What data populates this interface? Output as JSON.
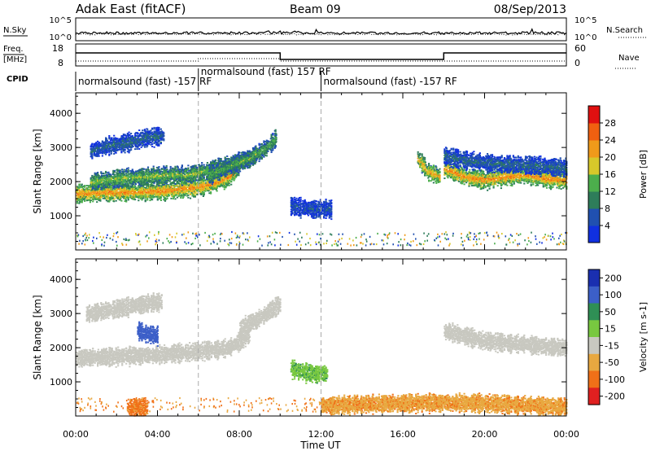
{
  "header": {
    "station": "Adak East (fitACF)",
    "beam": "Beam 09",
    "date": "08/Sep/2013"
  },
  "strips": {
    "nsky_label": "N.Sky",
    "nsearch_label": "N.Search",
    "noise_ticks": [
      "10^5",
      "10^0"
    ],
    "freq_label_line1": "Freq.",
    "freq_label_line2": "[MHz]",
    "freq_ticks": [
      "18",
      "8"
    ],
    "nave_label": "Nave",
    "nave_ticks": [
      "60",
      "0"
    ],
    "cpid_label": "CPID",
    "cpid_segments": [
      {
        "start_hour": 0,
        "end_hour": 6,
        "text": "normalsound (fast) -157 RF"
      },
      {
        "start_hour": 6,
        "end_hour": 12,
        "text": "normalsound (fast) 157 RF"
      },
      {
        "start_hour": 12,
        "end_hour": 24,
        "text": "normalsound (fast) -157 RF"
      }
    ]
  },
  "chart_data": [
    {
      "type": "heatmap",
      "title": "",
      "xlabel": "Time UT",
      "ylabel": "Slant Range [km]",
      "xlim": [
        0,
        24
      ],
      "ylim": [
        0,
        4600
      ],
      "x_ticks": [
        "00:00",
        "04:00",
        "08:00",
        "12:00",
        "16:00",
        "20:00",
        "00:00"
      ],
      "y_ticks": [
        "1000",
        "2000",
        "3000",
        "4000"
      ],
      "colorbar": {
        "label": "Power [dB]",
        "ticks": [
          "4",
          "8",
          "12",
          "16",
          "20",
          "24",
          "28"
        ],
        "colors": [
          "#1030e0",
          "#2050b0",
          "#2e7d5a",
          "#4cae4c",
          "#d7c82a",
          "#f09a1a",
          "#f06010",
          "#e01010"
        ]
      },
      "series": [
        {
          "x": [
            0.0,
            1.5,
            3.0,
            4.5,
            6.0,
            7.0,
            7.6,
            8.0
          ],
          "y": [
            1650,
            1700,
            1700,
            1750,
            1850,
            2000,
            2200,
            2500
          ],
          "value": 24
        },
        {
          "x": [
            0.7,
            2.0,
            3.5,
            4.5,
            5.5,
            6.5,
            7.5,
            8.5
          ],
          "y": [
            2000,
            2100,
            2150,
            2200,
            2200,
            2350,
            2500,
            2700
          ],
          "value": 16
        },
        {
          "x": [
            0.7,
            1.5,
            2.5,
            3.5,
            4.3
          ],
          "y": [
            2900,
            3050,
            3150,
            3300,
            3350
          ],
          "value": 8
        },
        {
          "x": [
            6.5,
            7.5,
            8.5,
            9.3,
            9.8
          ],
          "y": [
            2200,
            2450,
            2700,
            3000,
            3300
          ],
          "value": 14
        },
        {
          "x": [
            10.5,
            11.0,
            11.5,
            12.0,
            12.5
          ],
          "y": [
            1300,
            1250,
            1200,
            1200,
            1200
          ],
          "value": 6
        },
        {
          "x": [
            16.7,
            17.2,
            17.8
          ],
          "y": [
            2700,
            2300,
            2150
          ],
          "value": 22
        },
        {
          "x": [
            18.0,
            19.0,
            20.0,
            21.0,
            22.0,
            23.0,
            24.0
          ],
          "y": [
            2400,
            2150,
            2050,
            2150,
            2200,
            2100,
            2050
          ],
          "value": 24
        },
        {
          "x": [
            18.0,
            20.0,
            22.0,
            24.0
          ],
          "y": [
            2750,
            2550,
            2500,
            2400
          ],
          "value": 8
        }
      ]
    },
    {
      "type": "heatmap",
      "title": "",
      "xlabel": "Time UT",
      "ylabel": "Slant Range [km]",
      "xlim": [
        0,
        24
      ],
      "ylim": [
        0,
        4600
      ],
      "x_ticks": [
        "00:00",
        "04:00",
        "08:00",
        "12:00",
        "16:00",
        "20:00",
        "00:00"
      ],
      "y_ticks": [
        "1000",
        "2000",
        "3000",
        "4000"
      ],
      "colorbar": {
        "label": "Velocity [m s-1]",
        "ticks": [
          "200",
          "100",
          "50",
          "15",
          "-15",
          "-50",
          "-100",
          "-200"
        ],
        "colors": [
          "#1a2fb0",
          "#3c5fc8",
          "#2f8f55",
          "#78c840",
          "#c8c8c0",
          "#e8a840",
          "#f07018",
          "#e02020"
        ]
      },
      "series": [
        {
          "x": [
            0.0,
            2.0,
            4.0,
            6.0,
            7.5,
            8.5
          ],
          "y": [
            1700,
            1750,
            1800,
            1900,
            2000,
            2400
          ],
          "value": 0
        },
        {
          "x": [
            0.5,
            2.0,
            3.5,
            4.2
          ],
          "y": [
            3000,
            3150,
            3300,
            3350
          ],
          "value": 0
        },
        {
          "x": [
            3.0,
            3.5,
            4.0
          ],
          "y": [
            2500,
            2400,
            2350
          ],
          "value": 150
        },
        {
          "x": [
            8.0,
            8.8,
            9.5,
            10.0
          ],
          "y": [
            2600,
            2800,
            3100,
            3300
          ],
          "value": 0
        },
        {
          "x": [
            10.5,
            11.0,
            11.5,
            12.3
          ],
          "y": [
            1400,
            1300,
            1250,
            1250
          ],
          "value": 40
        },
        {
          "x": [
            18.0,
            20.0,
            22.0,
            24.0
          ],
          "y": [
            2500,
            2200,
            2100,
            2000
          ],
          "value": 0
        },
        {
          "x": [
            2.5,
            3.0,
            3.5
          ],
          "y": [
            250,
            250,
            250
          ],
          "value": -60
        },
        {
          "x": [
            12.0,
            14.0,
            16.0,
            18.0,
            20.0,
            22.0,
            24.0
          ],
          "y": [
            300,
            350,
            380,
            400,
            380,
            320,
            280
          ],
          "value": -40
        }
      ]
    }
  ]
}
